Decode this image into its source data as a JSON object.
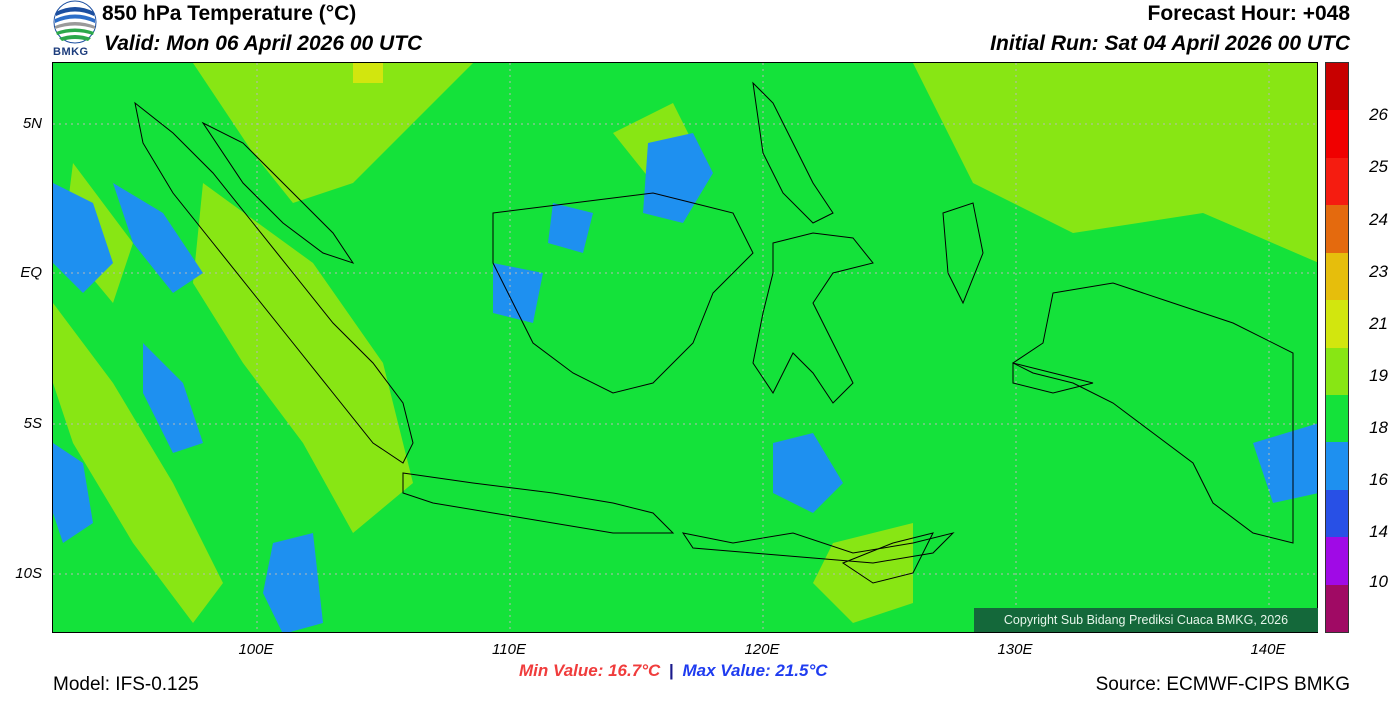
{
  "header": {
    "title": "850 hPa Temperature (°C)",
    "valid": "Valid: Mon 06 April 2026 00 UTC",
    "forecast_hour": "Forecast Hour: +048",
    "initial_run": "Initial Run: Sat 04 April 2026 00 UTC"
  },
  "logo": {
    "text": "BMKG"
  },
  "map": {
    "lat_labels": [
      "5N",
      "EQ",
      "5S",
      "10S"
    ],
    "lon_labels": [
      "100E",
      "110E",
      "120E",
      "130E",
      "140E"
    ],
    "background_color": "#14e23a",
    "copyright": "Copyright Sub Bidang Prediksi Cuaca BMKG, 2026"
  },
  "colorbar": {
    "labels": [
      "26",
      "25",
      "24",
      "23",
      "21",
      "19",
      "18",
      "16",
      "14",
      "10"
    ],
    "colors": [
      "#c80000",
      "#f00000",
      "#f51c10",
      "#e46a0e",
      "#e6be0c",
      "#d2e60e",
      "#88e614",
      "#14e23a",
      "#1e90f0",
      "#2850e6",
      "#a00ae6",
      "#a00a64"
    ]
  },
  "footer": {
    "min_value": "Min Value: 16.7°C",
    "separator": "|",
    "max_value": "Max Value: 21.5°C",
    "model": "Model: IFS-0.125",
    "source": "Source: ECMWF-CIPS BMKG"
  }
}
